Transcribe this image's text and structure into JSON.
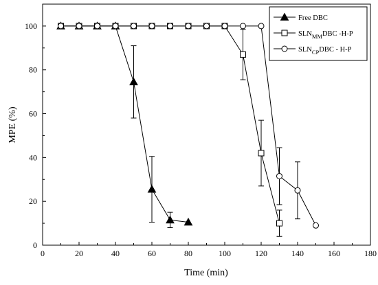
{
  "chart_data": {
    "type": "line",
    "xlabel": "Time (min)",
    "ylabel": "MPE (%)",
    "xlim": [
      0,
      180
    ],
    "ylim": [
      0,
      110
    ],
    "x_ticks": [
      0,
      20,
      40,
      60,
      80,
      100,
      120,
      140,
      160,
      180
    ],
    "y_ticks": [
      0,
      20,
      40,
      60,
      80,
      100
    ],
    "x_tick_labels": [
      "0",
      "20",
      "40",
      "60",
      "80",
      "100",
      "120",
      "140",
      "160",
      "180"
    ],
    "y_tick_labels": [
      "0",
      "20",
      "40",
      "60",
      "80",
      "100"
    ],
    "grid": false,
    "legend_position": "top-right",
    "series": [
      {
        "id": "free",
        "legend_main": "Free DBC",
        "legend_sub": "",
        "legend_tail": "",
        "marker": "filled-triangle",
        "x": [
          10,
          20,
          30,
          40,
          50,
          60,
          70,
          80
        ],
        "y": [
          100,
          100,
          100,
          100,
          74.5,
          25.5,
          11.5,
          10.5
        ],
        "error": [
          0,
          0,
          0,
          0,
          16.5,
          15,
          3.5,
          0
        ]
      },
      {
        "id": "mm",
        "legend_main": "SLN",
        "legend_sub": "MM",
        "legend_tail": "DBC -H-P",
        "marker": "open-square",
        "x": [
          10,
          20,
          30,
          40,
          50,
          60,
          70,
          80,
          90,
          100,
          110,
          120,
          130
        ],
        "y": [
          100,
          100,
          100,
          100,
          100,
          100,
          100,
          100,
          100,
          100,
          87,
          42,
          10
        ],
        "error": [
          0,
          0,
          0,
          0,
          0,
          0,
          0,
          0,
          0,
          0,
          11.5,
          15,
          6
        ]
      },
      {
        "id": "cp",
        "legend_main": "SLN",
        "legend_sub": "CP",
        "legend_tail": "DBC - H-P",
        "marker": "open-circle",
        "x": [
          10,
          20,
          30,
          40,
          50,
          60,
          70,
          80,
          90,
          100,
          110,
          120,
          130,
          140,
          150
        ],
        "y": [
          100,
          100,
          100,
          100,
          100,
          100,
          100,
          100,
          100,
          100,
          100,
          100,
          31.5,
          25,
          9
        ],
        "error": [
          0,
          0,
          0,
          0,
          0,
          0,
          0,
          0,
          0,
          0,
          0,
          0,
          13,
          13,
          0
        ]
      }
    ]
  }
}
